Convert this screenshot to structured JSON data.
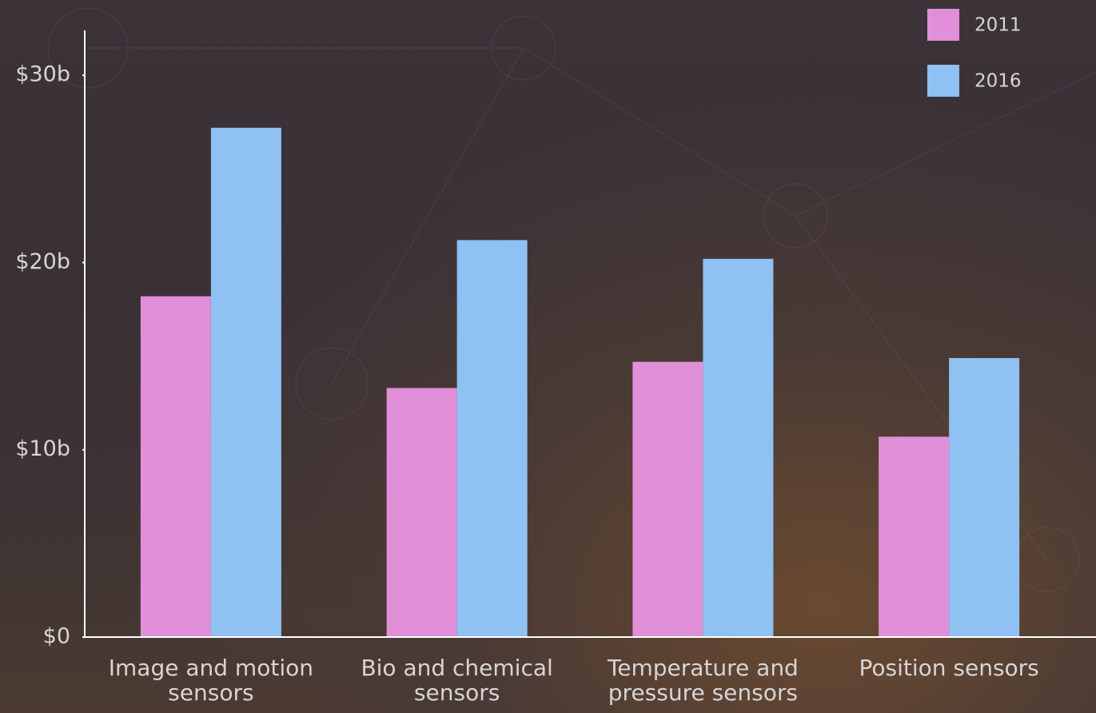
{
  "chart_data": {
    "type": "bar",
    "categories": [
      "Image and motion sensors",
      "Bio and chemical sensors",
      "Temperature and pressure sensors",
      "Position sensors"
    ],
    "series": [
      {
        "name": "2011",
        "color": "#e08fd8",
        "values": [
          18.2,
          13.3,
          14.7,
          10.7
        ]
      },
      {
        "name": "2016",
        "color": "#8fc1f2",
        "values": [
          27.2,
          21.2,
          20.2,
          14.9
        ]
      }
    ],
    "ylim": [
      0,
      32.4
    ],
    "yticks": [
      {
        "value": 0,
        "label": "$0"
      },
      {
        "value": 10,
        "label": "$10b"
      },
      {
        "value": 20,
        "label": "$20b"
      },
      {
        "value": 30,
        "label": "$30b"
      }
    ],
    "legend": "top-right"
  }
}
